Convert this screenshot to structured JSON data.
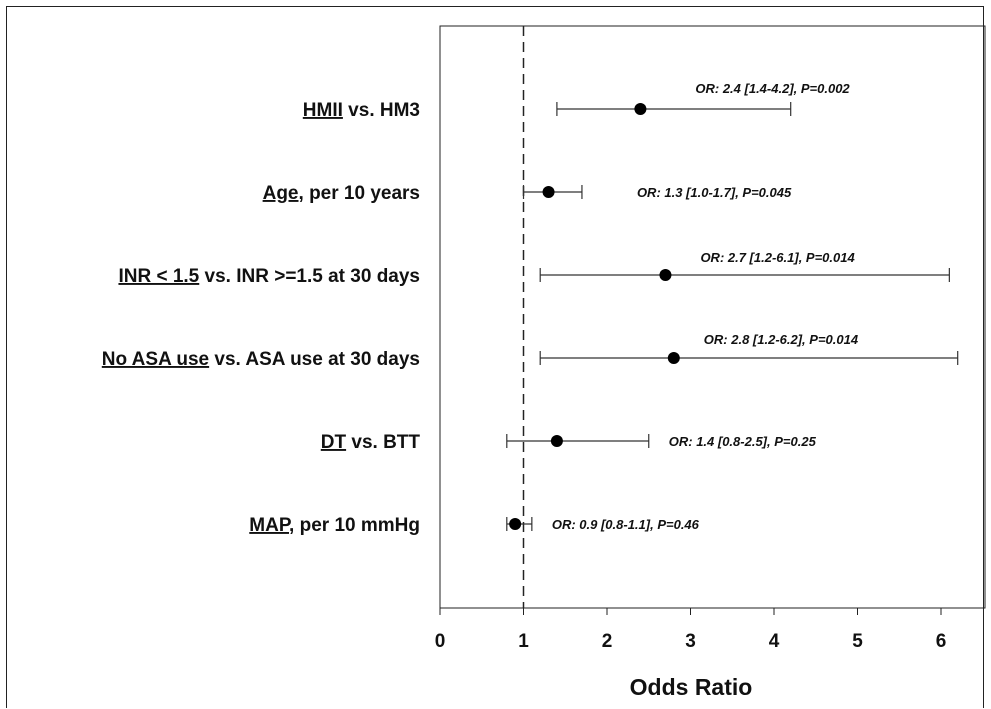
{
  "chart_data": {
    "type": "forest",
    "xlabel": "Odds Ratio",
    "xlim": [
      0,
      6.5
    ],
    "xticks": [
      "0",
      "1",
      "2",
      "3",
      "4",
      "5",
      "6"
    ],
    "reference_line": 1,
    "rows": [
      {
        "label_u": "HMII",
        "label_rest": " vs. HM3",
        "or": 2.4,
        "lo": 1.4,
        "hi": 4.2,
        "annotation": "OR: 2.4 [1.4-4.2], P=0.002"
      },
      {
        "label_u": "Age,",
        "label_rest": " per 10 years",
        "or": 1.3,
        "lo": 1.0,
        "hi": 1.7,
        "annotation": "OR: 1.3 [1.0-1.7], P=0.045"
      },
      {
        "label_u": "INR < 1.5",
        "label_rest": "  vs. INR >=1.5  at 30 days",
        "or": 2.7,
        "lo": 1.2,
        "hi": 6.1,
        "annotation": "OR: 2.7 [1.2-6.1], P=0.014"
      },
      {
        "label_u": "No ASA use",
        "label_rest": "  vs. ASA use at 30 days",
        "or": 2.8,
        "lo": 1.2,
        "hi": 6.2,
        "annotation": "OR: 2.8 [1.2-6.2], P=0.014"
      },
      {
        "label_u": "DT",
        "label_rest": "  vs. BTT",
        "or": 1.4,
        "lo": 0.8,
        "hi": 2.5,
        "annotation": "OR: 1.4 [0.8-2.5],  P=0.25"
      },
      {
        "label_u": "MAP,",
        "label_rest": " per 10 mmHg",
        "or": 0.9,
        "lo": 0.8,
        "hi": 1.1,
        "annotation": "OR: 0.9 [0.8-1.1], P=0.46"
      }
    ]
  }
}
